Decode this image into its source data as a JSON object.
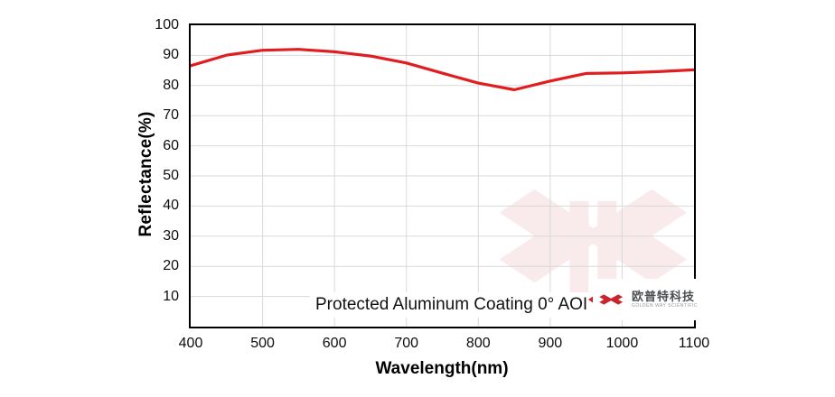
{
  "chart_data": {
    "type": "line",
    "title": "",
    "xlabel": "Wavelength(nm)",
    "ylabel": "Reflectance(%)",
    "xlim": [
      400,
      1100
    ],
    "ylim": [
      0,
      100
    ],
    "x_ticks": [
      400,
      500,
      600,
      700,
      800,
      900,
      1000,
      1100
    ],
    "y_ticks": [
      10,
      20,
      30,
      40,
      50,
      60,
      70,
      80,
      90,
      100
    ],
    "grid": true,
    "legend_position": "none",
    "x": [
      400,
      450,
      500,
      550,
      600,
      650,
      700,
      750,
      800,
      850,
      900,
      950,
      1000,
      1050,
      1100
    ],
    "series": [
      {
        "name": "Protected Aluminum Coating 0° AOI",
        "values": [
          86.6,
          90.1,
          91.7,
          92.0,
          91.2,
          89.8,
          87.5,
          84.1,
          80.8,
          78.6,
          81.5,
          84.0,
          84.2,
          84.6,
          85.2
        ]
      }
    ]
  },
  "annotation": {
    "label": "Protected Aluminum Coating  0°  AOI"
  },
  "logo": {
    "cn": "欧普特科技",
    "en": "GOLDEN WAY SCIENTIFIC"
  },
  "colors": {
    "curve": "#e01e20",
    "grid": "#d9d9d9",
    "axis": "#000000",
    "logo_red": "#c9252c",
    "watermark": "#c9252c"
  }
}
